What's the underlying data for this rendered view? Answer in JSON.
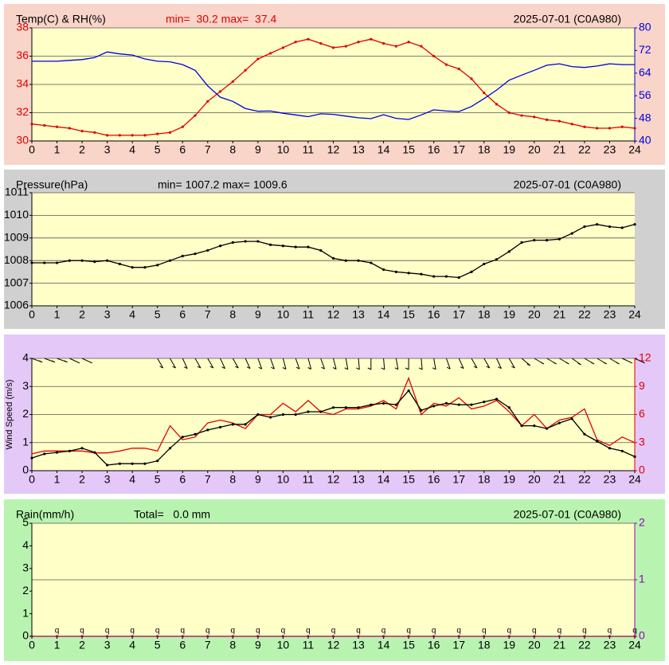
{
  "chart_data": [
    {
      "type": "line",
      "title": "Temp(C) & RH(%)",
      "stats": "min=  30.2 max=  37.4",
      "stats_color": "#e00000",
      "date_label": "2025-07-01 (C0A980)",
      "background": "#f9d4c8",
      "plot_background": "#ffffc8",
      "grid": true,
      "grid_axis": "y",
      "xlim": [
        0,
        24
      ],
      "xticks": [
        0,
        1,
        2,
        3,
        4,
        5,
        6,
        7,
        8,
        9,
        10,
        11,
        12,
        13,
        14,
        15,
        16,
        17,
        18,
        19,
        20,
        21,
        22,
        23,
        24
      ],
      "ylim": [
        30,
        38
      ],
      "yticks": [
        30,
        32,
        34,
        36,
        38
      ],
      "ytick_color": "#e00000",
      "y2lim": [
        40,
        80
      ],
      "y2ticks": [
        40,
        48,
        56,
        64,
        72,
        80
      ],
      "y2tick_color": "#0000e0",
      "x": [
        0,
        0.5,
        1,
        1.5,
        2,
        2.5,
        3,
        3.5,
        4,
        4.5,
        5,
        5.5,
        6,
        6.5,
        7,
        7.5,
        8,
        8.5,
        9,
        9.5,
        10,
        10.5,
        11,
        11.5,
        12,
        12.5,
        13,
        13.5,
        14,
        14.5,
        15,
        15.5,
        16,
        16.5,
        17,
        17.5,
        18,
        18.5,
        19,
        19.5,
        20,
        20.5,
        21,
        21.5,
        22,
        22.5,
        23,
        23.5,
        24
      ],
      "series": [
        {
          "color": "#e00000",
          "markers": true,
          "values": [
            31.2,
            31.1,
            31.0,
            30.9,
            30.7,
            30.6,
            30.4,
            30.4,
            30.4,
            30.4,
            30.5,
            30.6,
            31.0,
            31.8,
            32.8,
            33.5,
            34.2,
            35.0,
            35.8,
            36.2,
            36.6,
            37.0,
            37.2,
            36.9,
            36.6,
            36.7,
            37.0,
            37.2,
            36.9,
            36.7,
            37.0,
            36.7,
            36.0,
            35.4,
            35.1,
            34.4,
            33.4,
            32.6,
            32.0,
            31.8,
            31.7,
            31.5,
            31.4,
            31.2,
            31.0,
            30.9,
            30.9,
            31.0,
            30.9
          ]
        },
        {
          "color": "#0000e0",
          "axis": "y2",
          "markers": false,
          "values": [
            68.2,
            68.2,
            68.2,
            68.5,
            68.8,
            69.5,
            71.5,
            70.8,
            70.4,
            69,
            68.2,
            68,
            67,
            65,
            59.5,
            55.5,
            54,
            51.5,
            50.5,
            50.6,
            49.8,
            49.2,
            48.6,
            49.6,
            49.4,
            48.8,
            48.2,
            47.9,
            49.3,
            48,
            47.6,
            49.2,
            51,
            50.6,
            50.4,
            52.2,
            55,
            58,
            61.5,
            63.3,
            65,
            66.8,
            67.3,
            66.3,
            66,
            66.5,
            67.3,
            67,
            67
          ]
        }
      ]
    },
    {
      "type": "line",
      "title": "Pressure(hPa)",
      "stats": "min= 1007.2 max= 1009.6",
      "stats_color": "#000000",
      "date_label": "2025-07-01 (C0A980)",
      "background": "#d0d0d0",
      "plot_background": "#ffffc8",
      "grid": true,
      "grid_axis": "y",
      "xlim": [
        0,
        24
      ],
      "xticks": [
        0,
        1,
        2,
        3,
        4,
        5,
        6,
        7,
        8,
        9,
        10,
        11,
        12,
        13,
        14,
        15,
        16,
        17,
        18,
        19,
        20,
        21,
        22,
        23,
        24
      ],
      "ylim": [
        1006,
        1011
      ],
      "yticks": [
        1006,
        1007,
        1008,
        1009,
        1010,
        1011
      ],
      "ytick_color": "#000000",
      "x": [
        0,
        0.5,
        1,
        1.5,
        2,
        2.5,
        3,
        3.5,
        4,
        4.5,
        5,
        5.5,
        6,
        6.5,
        7,
        7.5,
        8,
        8.5,
        9,
        9.5,
        10,
        10.5,
        11,
        11.5,
        12,
        12.5,
        13,
        13.5,
        14,
        14.5,
        15,
        15.5,
        16,
        16.5,
        17,
        17.5,
        18,
        18.5,
        19,
        19.5,
        20,
        20.5,
        21,
        21.5,
        22,
        22.5,
        23,
        23.5,
        24
      ],
      "series": [
        {
          "color": "#000000",
          "markers": true,
          "values": [
            1007.9,
            1007.9,
            1007.9,
            1008.0,
            1008.0,
            1007.95,
            1008.0,
            1007.85,
            1007.7,
            1007.7,
            1007.8,
            1008.0,
            1008.2,
            1008.3,
            1008.45,
            1008.65,
            1008.8,
            1008.85,
            1008.85,
            1008.7,
            1008.65,
            1008.6,
            1008.6,
            1008.45,
            1008.1,
            1008.0,
            1008.0,
            1007.9,
            1007.6,
            1007.5,
            1007.45,
            1007.4,
            1007.3,
            1007.3,
            1007.25,
            1007.5,
            1007.85,
            1008.05,
            1008.4,
            1008.8,
            1008.9,
            1008.9,
            1008.95,
            1009.2,
            1009.5,
            1009.6,
            1009.5,
            1009.45,
            1009.6
          ]
        }
      ]
    },
    {
      "type": "line",
      "ylabel": "Wind Speed (m/s)",
      "background": "#e4c8f8",
      "plot_background": "#ffffc8",
      "grid": true,
      "grid_axis": "y",
      "xlim": [
        0,
        24
      ],
      "xticks": [
        0,
        1,
        2,
        3,
        4,
        5,
        6,
        7,
        8,
        9,
        10,
        11,
        12,
        13,
        14,
        15,
        16,
        17,
        18,
        19,
        20,
        21,
        22,
        23,
        24
      ],
      "ylim": [
        0,
        4
      ],
      "yticks": [
        0,
        1,
        2,
        3,
        4
      ],
      "ytick_color": "#000000",
      "y2lim": [
        0,
        12
      ],
      "y2ticks": [
        0,
        3,
        6,
        9,
        12
      ],
      "y2tick_color": "#e00000",
      "x": [
        0,
        0.5,
        1,
        1.5,
        2,
        2.5,
        3,
        3.5,
        4,
        4.5,
        5,
        5.5,
        6,
        6.5,
        7,
        7.5,
        8,
        8.5,
        9,
        9.5,
        10,
        10.5,
        11,
        11.5,
        12,
        12.5,
        13,
        13.5,
        14,
        14.5,
        15,
        15.5,
        16,
        16.5,
        17,
        17.5,
        18,
        18.5,
        19,
        19.5,
        20,
        20.5,
        21,
        21.5,
        22,
        22.5,
        23,
        23.5,
        24
      ],
      "series": [
        {
          "color": "#e00000",
          "axis": "y2",
          "markers": false,
          "values": [
            1.8,
            2.1,
            2.1,
            2.1,
            2.1,
            1.9,
            1.9,
            2.1,
            2.4,
            2.4,
            2.1,
            4.8,
            3.3,
            3.6,
            5.1,
            5.4,
            5.1,
            4.5,
            6.0,
            6.0,
            7.2,
            6.3,
            7.5,
            6.3,
            6.0,
            6.6,
            6.6,
            6.9,
            7.5,
            6.6,
            9.9,
            6.0,
            7.2,
            6.9,
            7.8,
            6.6,
            6.9,
            7.5,
            6.3,
            4.8,
            6.0,
            4.5,
            5.4,
            5.7,
            6.6,
            3.3,
            2.7,
            3.6,
            3.0
          ]
        },
        {
          "color": "#000000",
          "markers": true,
          "values": [
            0.45,
            0.6,
            0.65,
            0.7,
            0.8,
            0.65,
            0.2,
            0.25,
            0.25,
            0.25,
            0.35,
            0.8,
            1.2,
            1.3,
            1.45,
            1.55,
            1.65,
            1.65,
            2.0,
            1.9,
            2.0,
            2.0,
            2.1,
            2.1,
            2.25,
            2.25,
            2.25,
            2.35,
            2.4,
            2.35,
            2.85,
            2.15,
            2.3,
            2.4,
            2.35,
            2.35,
            2.45,
            2.55,
            2.25,
            1.6,
            1.6,
            1.5,
            1.7,
            1.85,
            1.3,
            1.05,
            0.8,
            0.7,
            0.5
          ]
        }
      ],
      "wind_direction": [
        290,
        290,
        290,
        295,
        295,
        null,
        null,
        null,
        null,
        null,
        330,
        330,
        335,
        330,
        330,
        335,
        330,
        335,
        340,
        340,
        345,
        340,
        345,
        340,
        345,
        350,
        355,
        0,
        355,
        350,
        0,
        355,
        350,
        340,
        335,
        330,
        330,
        335,
        330,
        310,
        300,
        300,
        300,
        305,
        300,
        300,
        300,
        295,
        295
      ]
    },
    {
      "type": "line",
      "title": "Rain(mm/h)",
      "stats": "Total=   0.0 mm",
      "stats_color": "#000000",
      "date_label": "2025-07-01 (C0A980)",
      "background": "#b8f4b0",
      "plot_background": "#ffffc8",
      "grid": true,
      "grid_axis": "y2",
      "hour_symbol": "q",
      "xlim": [
        0,
        24
      ],
      "xticks": [
        0,
        1,
        2,
        3,
        4,
        5,
        6,
        7,
        8,
        9,
        10,
        11,
        12,
        13,
        14,
        15,
        16,
        17,
        18,
        19,
        20,
        21,
        22,
        23,
        24
      ],
      "ylim": [
        0,
        5
      ],
      "yticks": [
        0,
        1,
        2,
        3,
        4,
        5
      ],
      "ytick_color": "#000000",
      "y2lim": [
        0,
        2
      ],
      "y2ticks": [
        0,
        1,
        2
      ],
      "y2tick_color": "#9000c0",
      "x": [
        0,
        1,
        2,
        3,
        4,
        5,
        6,
        7,
        8,
        9,
        10,
        11,
        12,
        13,
        14,
        15,
        16,
        17,
        18,
        19,
        20,
        21,
        22,
        23,
        24
      ],
      "series": [
        {
          "color": "#a00050",
          "markers": true,
          "values": [
            0,
            0,
            0,
            0,
            0,
            0,
            0,
            0,
            0,
            0,
            0,
            0,
            0,
            0,
            0,
            0,
            0,
            0,
            0,
            0,
            0,
            0,
            0,
            0,
            0
          ]
        }
      ]
    }
  ]
}
